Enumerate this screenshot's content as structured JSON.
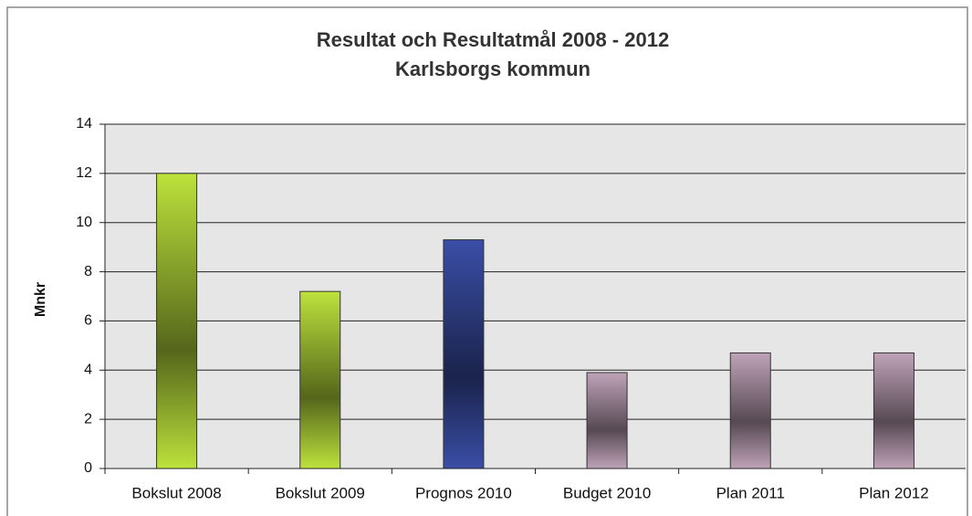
{
  "chart_data": {
    "type": "bar",
    "title": "Resultat och Resultatmål 2008 - 2012",
    "subtitle": "Karlsborgs kommun",
    "y_label": "Mnkr",
    "categories": [
      "Bokslut 2008",
      "Bokslut 2009",
      "Prognos 2010",
      "Budget 2010",
      "Plan 2011",
      "Plan 2012"
    ],
    "values": [
      12,
      7.2,
      9.3,
      3.9,
      4.7,
      4.7
    ],
    "colors": [
      "#bde23c",
      "#bde23c",
      "#3a4ea6",
      "#bfa3b8",
      "#bfa3b8",
      "#bfa3b8"
    ],
    "ylim": [
      0,
      14
    ],
    "yticks": [
      0,
      2,
      4,
      6,
      8,
      10,
      12,
      14
    ],
    "grid": true
  }
}
